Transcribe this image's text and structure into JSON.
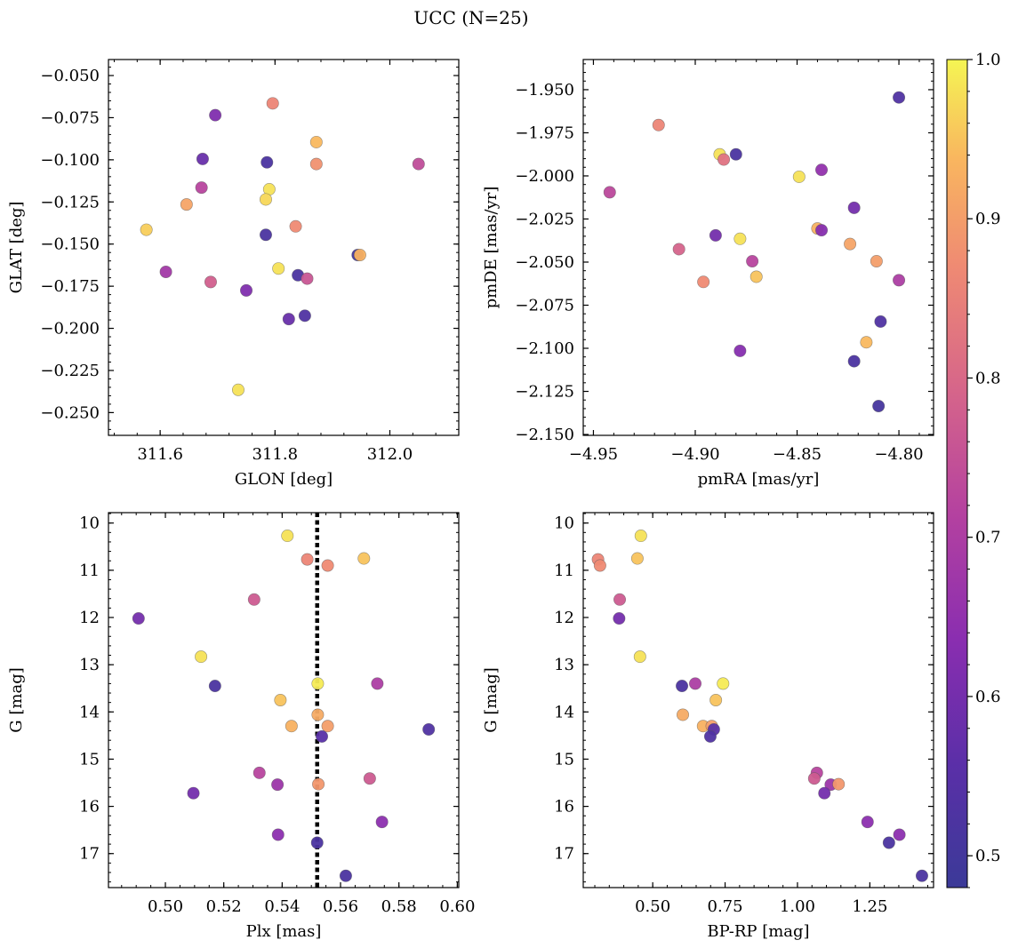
{
  "figure": {
    "title": "UCC (N=25)"
  },
  "colorbar": {
    "cmap": "plasma",
    "range": [
      0.48,
      1.0
    ],
    "ticks": [
      0.5,
      0.6,
      0.7,
      0.8,
      0.9,
      1.0
    ],
    "tick_labels": [
      "0.5",
      "0.6",
      "0.7",
      "0.8",
      "0.9",
      "1.0"
    ]
  },
  "chart_data": [
    {
      "type": "scatter",
      "id": "glon-glat",
      "xlabel": "GLON [deg]",
      "ylabel": "GLAT [deg]",
      "xlim": [
        311.51,
        312.12
      ],
      "ylim": [
        -0.2635,
        -0.0405
      ],
      "y_inverted": false,
      "x_ticks": [
        311.6,
        311.8,
        312.0
      ],
      "x_tick_labels": [
        "311.6",
        "311.8",
        "312.0"
      ],
      "x_minor": 0.04,
      "y_ticks": [
        -0.25,
        -0.225,
        -0.2,
        -0.175,
        -0.15,
        -0.125,
        -0.1,
        -0.075,
        -0.05
      ],
      "y_tick_labels": [
        "−0.250",
        "−0.225",
        "−0.200",
        "−0.175",
        "−0.150",
        "−0.125",
        "−0.100",
        "−0.075",
        "−0.050"
      ],
      "y_minor": 0.005,
      "points": [
        {
          "x": 311.696,
          "y": -0.0735,
          "c": 0.62
        },
        {
          "x": 311.796,
          "y": -0.0665,
          "c": 0.86
        },
        {
          "x": 311.674,
          "y": -0.0995,
          "c": 0.58
        },
        {
          "x": 311.786,
          "y": -0.1015,
          "c": 0.52
        },
        {
          "x": 311.872,
          "y": -0.0895,
          "c": 0.94
        },
        {
          "x": 311.872,
          "y": -0.1025,
          "c": 0.88
        },
        {
          "x": 312.05,
          "y": -0.1025,
          "c": 0.74
        },
        {
          "x": 311.672,
          "y": -0.1165,
          "c": 0.72
        },
        {
          "x": 311.79,
          "y": -0.1175,
          "c": 0.98
        },
        {
          "x": 311.784,
          "y": -0.1235,
          "c": 0.97
        },
        {
          "x": 311.646,
          "y": -0.1265,
          "c": 0.91
        },
        {
          "x": 311.836,
          "y": -0.1395,
          "c": 0.87
        },
        {
          "x": 311.576,
          "y": -0.1415,
          "c": 0.96
        },
        {
          "x": 311.784,
          "y": -0.1445,
          "c": 0.52
        },
        {
          "x": 311.944,
          "y": -0.1565,
          "c": 0.5
        },
        {
          "x": 311.948,
          "y": -0.1565,
          "c": 0.93
        },
        {
          "x": 311.806,
          "y": -0.1645,
          "c": 0.98
        },
        {
          "x": 311.61,
          "y": -0.1665,
          "c": 0.68
        },
        {
          "x": 311.84,
          "y": -0.1685,
          "c": 0.52
        },
        {
          "x": 311.856,
          "y": -0.1705,
          "c": 0.76
        },
        {
          "x": 311.688,
          "y": -0.1725,
          "c": 0.78
        },
        {
          "x": 311.75,
          "y": -0.1775,
          "c": 0.62
        },
        {
          "x": 311.824,
          "y": -0.1945,
          "c": 0.58
        },
        {
          "x": 311.852,
          "y": -0.1925,
          "c": 0.53
        },
        {
          "x": 311.736,
          "y": -0.2365,
          "c": 0.98
        }
      ]
    },
    {
      "type": "scatter",
      "id": "pmra-pmde",
      "xlabel": "pmRA [mas/yr]",
      "ylabel": "pmDE [mas/yr]",
      "xlim": [
        -4.955,
        -4.783
      ],
      "ylim": [
        -2.1505,
        -1.9325
      ],
      "y_inverted": false,
      "x_ticks": [
        -4.95,
        -4.9,
        -4.85,
        -4.8
      ],
      "x_tick_labels": [
        "−4.95",
        "−4.90",
        "−4.85",
        "−4.80"
      ],
      "x_minor": 0.01,
      "y_ticks": [
        -2.15,
        -2.125,
        -2.1,
        -2.075,
        -2.05,
        -2.025,
        -2.0,
        -1.975,
        -1.95
      ],
      "y_tick_labels": [
        "−2.150",
        "−2.125",
        "−2.100",
        "−2.075",
        "−2.050",
        "−2.025",
        "−2.000",
        "−1.975",
        "−1.950"
      ],
      "y_minor": 0.005,
      "points": [
        {
          "x": -4.8,
          "y": -1.9545,
          "c": 0.53
        },
        {
          "x": -4.918,
          "y": -1.9705,
          "c": 0.86
        },
        {
          "x": -4.888,
          "y": -1.9875,
          "c": 0.98
        },
        {
          "x": -4.88,
          "y": -1.9875,
          "c": 0.52
        },
        {
          "x": -4.886,
          "y": -1.9905,
          "c": 0.82
        },
        {
          "x": -4.838,
          "y": -1.9965,
          "c": 0.65
        },
        {
          "x": -4.849,
          "y": -2.0005,
          "c": 0.98
        },
        {
          "x": -4.942,
          "y": -2.0095,
          "c": 0.73
        },
        {
          "x": -4.822,
          "y": -2.0185,
          "c": 0.6
        },
        {
          "x": -4.84,
          "y": -2.0305,
          "c": 0.93
        },
        {
          "x": -4.838,
          "y": -2.0315,
          "c": 0.63
        },
        {
          "x": -4.89,
          "y": -2.0345,
          "c": 0.6
        },
        {
          "x": -4.878,
          "y": -2.0365,
          "c": 0.98
        },
        {
          "x": -4.824,
          "y": -2.0395,
          "c": 0.91
        },
        {
          "x": -4.908,
          "y": -2.0425,
          "c": 0.79
        },
        {
          "x": -4.872,
          "y": -2.0495,
          "c": 0.72
        },
        {
          "x": -4.811,
          "y": -2.0495,
          "c": 0.9
        },
        {
          "x": -4.896,
          "y": -2.0615,
          "c": 0.87
        },
        {
          "x": -4.87,
          "y": -2.0585,
          "c": 0.95
        },
        {
          "x": -4.8,
          "y": -2.0605,
          "c": 0.7
        },
        {
          "x": -4.809,
          "y": -2.0845,
          "c": 0.53
        },
        {
          "x": -4.816,
          "y": -2.0965,
          "c": 0.94
        },
        {
          "x": -4.878,
          "y": -2.1015,
          "c": 0.63
        },
        {
          "x": -4.822,
          "y": -2.1075,
          "c": 0.52
        },
        {
          "x": -4.81,
          "y": -2.1335,
          "c": 0.51
        }
      ]
    },
    {
      "type": "scatter",
      "id": "plx-g",
      "xlabel": "Plx [mas]",
      "ylabel": "G [mag]",
      "xlim": [
        0.4805,
        0.6005
      ],
      "ylim": [
        17.72,
        9.78
      ],
      "y_inverted": true,
      "vline": 0.552,
      "x_ticks": [
        0.5,
        0.52,
        0.54,
        0.56,
        0.58,
        0.6
      ],
      "x_tick_labels": [
        "0.50",
        "0.52",
        "0.54",
        "0.56",
        "0.58",
        "0.60"
      ],
      "x_minor": 0.005,
      "y_ticks": [
        10,
        11,
        12,
        13,
        14,
        15,
        16,
        17
      ],
      "y_tick_labels": [
        "10",
        "11",
        "12",
        "13",
        "14",
        "15",
        "16",
        "17"
      ],
      "y_minor": 0.2,
      "points": [
        {
          "x": 0.5418,
          "y": 10.27,
          "c": 0.98
        },
        {
          "x": 0.5486,
          "y": 10.77,
          "c": 0.86
        },
        {
          "x": 0.568,
          "y": 10.75,
          "c": 0.95
        },
        {
          "x": 0.5556,
          "y": 10.9,
          "c": 0.87
        },
        {
          "x": 0.5304,
          "y": 11.62,
          "c": 0.77
        },
        {
          "x": 0.4908,
          "y": 12.02,
          "c": 0.6
        },
        {
          "x": 0.5122,
          "y": 12.83,
          "c": 0.98
        },
        {
          "x": 0.517,
          "y": 13.45,
          "c": 0.52
        },
        {
          "x": 0.5522,
          "y": 13.4,
          "c": 0.99
        },
        {
          "x": 0.5726,
          "y": 13.4,
          "c": 0.7
        },
        {
          "x": 0.5394,
          "y": 13.75,
          "c": 0.95
        },
        {
          "x": 0.5522,
          "y": 14.06,
          "c": 0.92
        },
        {
          "x": 0.5432,
          "y": 14.3,
          "c": 0.93
        },
        {
          "x": 0.5556,
          "y": 14.3,
          "c": 0.9
        },
        {
          "x": 0.5536,
          "y": 14.52,
          "c": 0.55
        },
        {
          "x": 0.5902,
          "y": 14.37,
          "c": 0.53
        },
        {
          "x": 0.5322,
          "y": 15.29,
          "c": 0.72
        },
        {
          "x": 0.57,
          "y": 15.41,
          "c": 0.77
        },
        {
          "x": 0.5384,
          "y": 15.54,
          "c": 0.67
        },
        {
          "x": 0.5524,
          "y": 15.53,
          "c": 0.89
        },
        {
          "x": 0.5096,
          "y": 15.72,
          "c": 0.6
        },
        {
          "x": 0.5742,
          "y": 16.33,
          "c": 0.64
        },
        {
          "x": 0.5386,
          "y": 16.6,
          "c": 0.64
        },
        {
          "x": 0.552,
          "y": 16.77,
          "c": 0.52
        },
        {
          "x": 0.5618,
          "y": 17.47,
          "c": 0.52
        }
      ]
    },
    {
      "type": "scatter",
      "id": "bprp-g",
      "xlabel": "BP-RP [mag]",
      "ylabel": "G [mag]",
      "xlim": [
        0.26,
        1.47
      ],
      "ylim": [
        17.72,
        9.78
      ],
      "y_inverted": true,
      "x_ticks": [
        0.5,
        0.75,
        1.0,
        1.25
      ],
      "x_tick_labels": [
        "0.50",
        "0.75",
        "1.00",
        "1.25"
      ],
      "x_minor": 0.05,
      "y_ticks": [
        10,
        11,
        12,
        13,
        14,
        15,
        16,
        17
      ],
      "y_tick_labels": [
        "10",
        "11",
        "12",
        "13",
        "14",
        "15",
        "16",
        "17"
      ],
      "y_minor": 0.2,
      "points": [
        {
          "x": 0.459,
          "y": 10.27,
          "c": 0.98
        },
        {
          "x": 0.311,
          "y": 10.77,
          "c": 0.86
        },
        {
          "x": 0.318,
          "y": 10.9,
          "c": 0.87
        },
        {
          "x": 0.447,
          "y": 10.75,
          "c": 0.95
        },
        {
          "x": 0.386,
          "y": 11.62,
          "c": 0.77
        },
        {
          "x": 0.384,
          "y": 12.02,
          "c": 0.6
        },
        {
          "x": 0.456,
          "y": 12.83,
          "c": 0.98
        },
        {
          "x": 0.601,
          "y": 13.45,
          "c": 0.52
        },
        {
          "x": 0.647,
          "y": 13.4,
          "c": 0.7
        },
        {
          "x": 0.743,
          "y": 13.4,
          "c": 0.99
        },
        {
          "x": 0.718,
          "y": 13.75,
          "c": 0.95
        },
        {
          "x": 0.604,
          "y": 14.06,
          "c": 0.92
        },
        {
          "x": 0.674,
          "y": 14.3,
          "c": 0.93
        },
        {
          "x": 0.704,
          "y": 14.3,
          "c": 0.9
        },
        {
          "x": 0.711,
          "y": 14.37,
          "c": 0.55
        },
        {
          "x": 0.699,
          "y": 14.52,
          "c": 0.53
        },
        {
          "x": 1.067,
          "y": 15.29,
          "c": 0.72
        },
        {
          "x": 1.058,
          "y": 15.41,
          "c": 0.77
        },
        {
          "x": 1.115,
          "y": 15.54,
          "c": 0.67
        },
        {
          "x": 1.142,
          "y": 15.53,
          "c": 0.89
        },
        {
          "x": 1.093,
          "y": 15.72,
          "c": 0.6
        },
        {
          "x": 1.242,
          "y": 16.33,
          "c": 0.64
        },
        {
          "x": 1.352,
          "y": 16.6,
          "c": 0.64
        },
        {
          "x": 1.316,
          "y": 16.77,
          "c": 0.52
        },
        {
          "x": 1.43,
          "y": 17.47,
          "c": 0.52
        }
      ]
    }
  ]
}
